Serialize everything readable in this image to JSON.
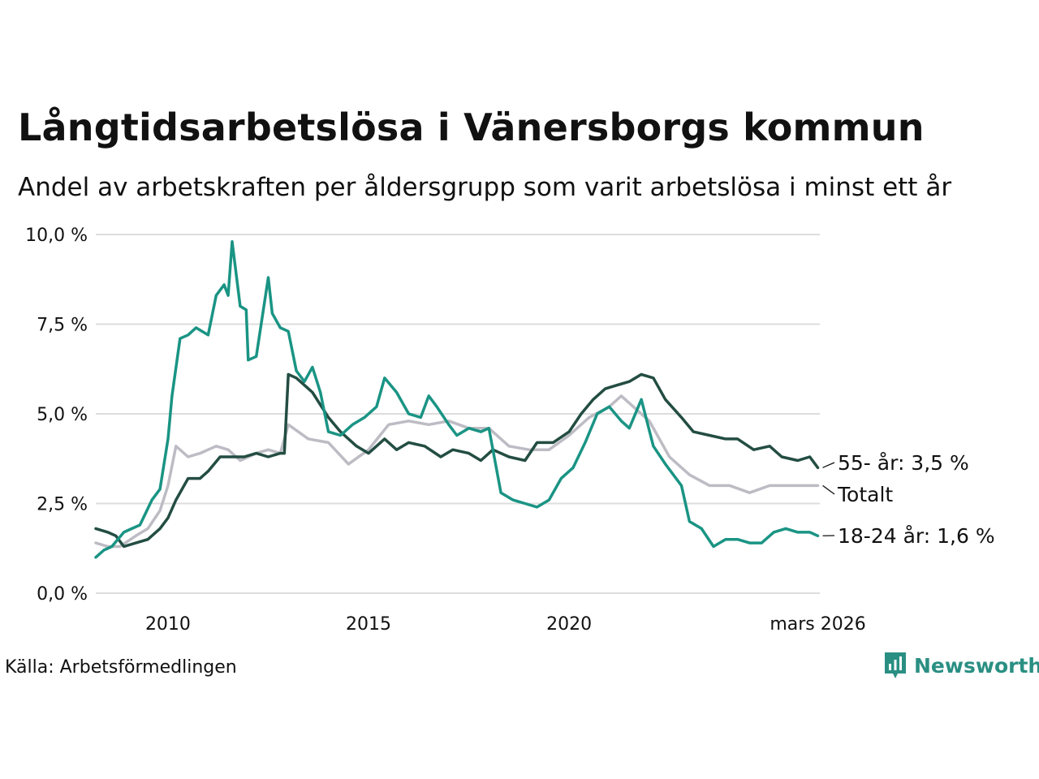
{
  "header": {
    "title": "Långtidsarbetslösa i Vänersborgs kommun",
    "subtitle": "Andel av arbetskraften per åldersgrupp som varit arbetslösa i minst ett år"
  },
  "footer": {
    "source": "Källa: Arbetsförmedlingen",
    "brand": "Newsworthy"
  },
  "colors": {
    "teal": "#1a9484",
    "dark": "#234d42",
    "grey": "#bdbcc4",
    "grid": "#dddddd"
  },
  "chart_data": {
    "type": "line",
    "title": "Långtidsarbetslösa i Vänersborgs kommun",
    "xlabel": "",
    "ylabel": "",
    "xlim": [
      2008.2,
      2026.25
    ],
    "ylim": [
      0,
      10
    ],
    "y_ticks": [
      {
        "value": 0,
        "label": "0,0 %"
      },
      {
        "value": 2.5,
        "label": "2,5 %"
      },
      {
        "value": 5,
        "label": "5,0 %"
      },
      {
        "value": 7.5,
        "label": "7,5 %"
      },
      {
        "value": 10,
        "label": "10,0 %"
      }
    ],
    "x_ticks": [
      {
        "value": 2010,
        "label": "2010"
      },
      {
        "value": 2015,
        "label": "2015"
      },
      {
        "value": 2020,
        "label": "2020"
      },
      {
        "value": 2026.2,
        "label": "mars 2026"
      }
    ],
    "grid": true,
    "series": [
      {
        "name": "Totalt",
        "label": "Totalt",
        "color": "#bdbcc4",
        "x": [
          2008.2,
          2008.5,
          2008.8,
          2009.2,
          2009.5,
          2009.8,
          2010.0,
          2010.2,
          2010.5,
          2010.8,
          2011.2,
          2011.5,
          2011.8,
          2012.2,
          2012.5,
          2012.8,
          2013.0,
          2013.5,
          2014.0,
          2014.5,
          2015.0,
          2015.5,
          2016.0,
          2016.5,
          2017.0,
          2017.5,
          2018.0,
          2018.5,
          2019.0,
          2019.5,
          2020.0,
          2020.5,
          2021.0,
          2021.3,
          2021.7,
          2022.0,
          2022.5,
          2023.0,
          2023.5,
          2024.0,
          2024.5,
          2025.0,
          2025.5,
          2026.0,
          2026.2
        ],
        "values": [
          1.4,
          1.3,
          1.3,
          1.6,
          1.8,
          2.3,
          3.0,
          4.1,
          3.8,
          3.9,
          4.1,
          4.0,
          3.7,
          3.9,
          4.0,
          3.9,
          4.7,
          4.3,
          4.2,
          3.6,
          4.0,
          4.7,
          4.8,
          4.7,
          4.8,
          4.6,
          4.6,
          4.1,
          4.0,
          4.0,
          4.4,
          4.9,
          5.2,
          5.5,
          5.1,
          4.8,
          3.8,
          3.3,
          3.0,
          3.0,
          2.8,
          3.0,
          3.0,
          3.0,
          3.0
        ],
        "end_label": "Totalt"
      },
      {
        "name": "55- år",
        "label": "55- år",
        "color": "#234d42",
        "x": [
          2008.2,
          2008.5,
          2008.7,
          2008.9,
          2009.2,
          2009.5,
          2009.8,
          2010.0,
          2010.2,
          2010.5,
          2010.8,
          2011.0,
          2011.3,
          2011.6,
          2011.9,
          2012.2,
          2012.5,
          2012.8,
          2012.9,
          2013.0,
          2013.2,
          2013.6,
          2014.0,
          2014.3,
          2014.7,
          2015.0,
          2015.4,
          2015.7,
          2016.0,
          2016.4,
          2016.8,
          2017.1,
          2017.5,
          2017.8,
          2018.1,
          2018.5,
          2018.9,
          2019.2,
          2019.6,
          2020.0,
          2020.3,
          2020.6,
          2020.9,
          2021.2,
          2021.5,
          2021.8,
          2022.1,
          2022.4,
          2022.8,
          2023.1,
          2023.5,
          2023.9,
          2024.2,
          2024.6,
          2025.0,
          2025.3,
          2025.7,
          2026.0,
          2026.2
        ],
        "values": [
          1.8,
          1.7,
          1.6,
          1.3,
          1.4,
          1.5,
          1.8,
          2.1,
          2.6,
          3.2,
          3.2,
          3.4,
          3.8,
          3.8,
          3.8,
          3.9,
          3.8,
          3.9,
          3.9,
          6.1,
          6.0,
          5.6,
          4.9,
          4.5,
          4.1,
          3.9,
          4.3,
          4.0,
          4.2,
          4.1,
          3.8,
          4.0,
          3.9,
          3.7,
          4.0,
          3.8,
          3.7,
          4.2,
          4.2,
          4.5,
          5.0,
          5.4,
          5.7,
          5.8,
          5.9,
          6.1,
          6.0,
          5.4,
          4.9,
          4.5,
          4.4,
          4.3,
          4.3,
          4.0,
          4.1,
          3.8,
          3.7,
          3.8,
          3.5
        ],
        "end_label": "55- år: 3,5 %"
      },
      {
        "name": "18-24 år",
        "label": "18-24 år",
        "color": "#1a9484",
        "x": [
          2008.2,
          2008.4,
          2008.6,
          2008.9,
          2009.1,
          2009.3,
          2009.6,
          2009.8,
          2010.0,
          2010.1,
          2010.3,
          2010.5,
          2010.7,
          2011.0,
          2011.2,
          2011.4,
          2011.5,
          2011.6,
          2011.8,
          2011.95,
          2012.0,
          2012.2,
          2012.5,
          2012.6,
          2012.8,
          2013.0,
          2013.2,
          2013.4,
          2013.6,
          2013.8,
          2014.0,
          2014.3,
          2014.6,
          2014.9,
          2015.2,
          2015.4,
          2015.7,
          2016.0,
          2016.3,
          2016.5,
          2016.7,
          2017.0,
          2017.2,
          2017.5,
          2017.8,
          2018.0,
          2018.3,
          2018.6,
          2018.9,
          2019.2,
          2019.5,
          2019.8,
          2020.1,
          2020.4,
          2020.7,
          2021.0,
          2021.3,
          2021.5,
          2021.8,
          2022.1,
          2022.4,
          2022.8,
          2023.0,
          2023.3,
          2023.6,
          2023.9,
          2024.2,
          2024.5,
          2024.8,
          2025.1,
          2025.4,
          2025.7,
          2026.0,
          2026.2
        ],
        "values": [
          1.0,
          1.2,
          1.3,
          1.7,
          1.8,
          1.9,
          2.6,
          2.9,
          4.3,
          5.5,
          7.1,
          7.2,
          7.4,
          7.2,
          8.3,
          8.6,
          8.3,
          9.8,
          8.0,
          7.9,
          6.5,
          6.6,
          8.8,
          7.8,
          7.4,
          7.3,
          6.2,
          5.9,
          6.3,
          5.6,
          4.5,
          4.4,
          4.7,
          4.9,
          5.2,
          6.0,
          5.6,
          5.0,
          4.9,
          5.5,
          5.2,
          4.7,
          4.4,
          4.6,
          4.5,
          4.6,
          2.8,
          2.6,
          2.5,
          2.4,
          2.6,
          3.2,
          3.5,
          4.2,
          5.0,
          5.2,
          4.8,
          4.6,
          5.4,
          4.1,
          3.6,
          3.0,
          2.0,
          1.8,
          1.3,
          1.5,
          1.5,
          1.4,
          1.4,
          1.7,
          1.8,
          1.7,
          1.7,
          1.6
        ],
        "end_label": "18-24 år: 1,6 %"
      }
    ]
  }
}
